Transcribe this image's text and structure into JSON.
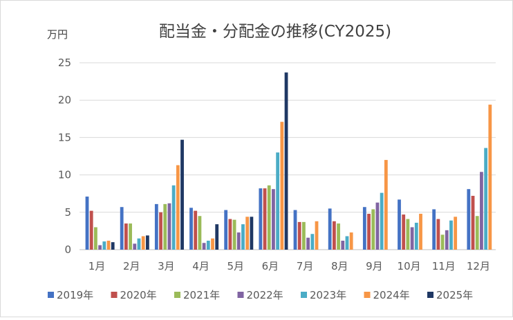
{
  "chart_data": {
    "type": "bar",
    "title": "配当金・分配金の推移(CY2025)",
    "unit_label": "万円",
    "xlabel": "",
    "ylabel": "",
    "ylim": [
      0,
      25
    ],
    "yticks": [
      "0",
      "5",
      "10",
      "15",
      "20",
      "25"
    ],
    "grid": true,
    "legend_position": "bottom",
    "categories": [
      "1月",
      "2月",
      "3月",
      "4月",
      "5月",
      "6月",
      "7月",
      "8月",
      "9月",
      "10月",
      "11月",
      "12月"
    ],
    "series": [
      {
        "name": "2019年",
        "color": "#4472c4",
        "values": [
          7.1,
          5.7,
          6.1,
          5.6,
          5.3,
          8.2,
          5.3,
          5.5,
          5.7,
          6.7,
          5.4,
          8.1
        ]
      },
      {
        "name": "2020年",
        "color": "#c0504d",
        "values": [
          5.2,
          3.5,
          5.0,
          5.2,
          4.1,
          8.2,
          3.7,
          3.8,
          4.8,
          4.7,
          4.1,
          7.2
        ]
      },
      {
        "name": "2021年",
        "color": "#9bbb59",
        "values": [
          3.0,
          3.5,
          6.1,
          4.5,
          4.0,
          8.6,
          3.7,
          3.5,
          5.4,
          4.1,
          2.0,
          4.5
        ]
      },
      {
        "name": "2022年",
        "color": "#8064a2",
        "values": [
          0.6,
          0.8,
          6.2,
          0.9,
          2.3,
          8.1,
          1.6,
          1.2,
          6.3,
          3.0,
          2.6,
          10.4
        ]
      },
      {
        "name": "2023年",
        "color": "#4bacc6",
        "values": [
          1.1,
          1.5,
          8.6,
          1.2,
          3.4,
          13.0,
          2.1,
          1.8,
          7.6,
          3.6,
          3.9,
          13.6
        ]
      },
      {
        "name": "2024年",
        "color": "#f79646",
        "values": [
          1.2,
          1.8,
          11.3,
          1.5,
          4.4,
          17.1,
          3.8,
          2.3,
          12.0,
          4.8,
          4.4,
          19.4
        ]
      },
      {
        "name": "2025年",
        "color": "#1f3864",
        "values": [
          1.0,
          1.9,
          14.7,
          3.4,
          4.4,
          23.7,
          null,
          null,
          null,
          null,
          null,
          null
        ]
      }
    ]
  }
}
